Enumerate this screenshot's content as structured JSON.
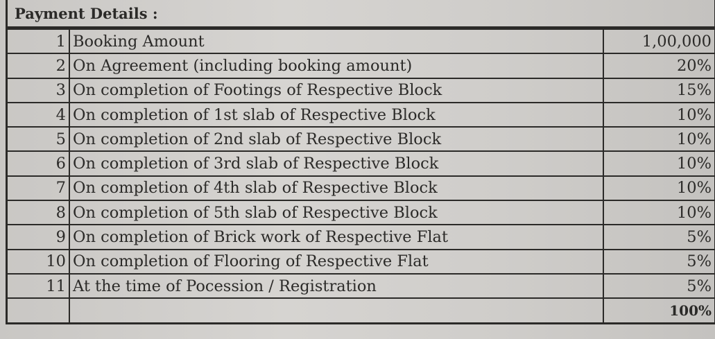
{
  "title": "Payment Details :",
  "rows": [
    {
      "no": "1",
      "description": "Booking Amount",
      "amount": "1,00,000"
    },
    {
      "no": "2",
      "description": "On Agreement (including booking amount)",
      "amount": "20%"
    },
    {
      "no": "3",
      "description": "On completion of Footings of Respective Block",
      "amount": "15%"
    },
    {
      "no": "4",
      "description": "On completion of 1st slab of Respective Block",
      "amount": "10%"
    },
    {
      "no": "5",
      "description": "On completion of 2nd slab of Respective Block",
      "amount": "10%"
    },
    {
      "no": "6",
      "description": "On completion of 3rd slab of Respective Block",
      "amount": "10%"
    },
    {
      "no": "7",
      "description": "On completion of 4th slab of Respective Block",
      "amount": "10%"
    },
    {
      "no": "8",
      "description": "On completion of 5th slab of Respective Block",
      "amount": "10%"
    },
    {
      "no": "9",
      "description": "On completion of  Brick work of Respective Flat",
      "amount": "5%"
    },
    {
      "no": "10",
      "description": "On completion of Flooring of Respective Flat",
      "amount": "5%"
    },
    {
      "no": "11",
      "description": "At the time of Pocession / Registration",
      "amount": "5%"
    }
  ],
  "total": "100%"
}
